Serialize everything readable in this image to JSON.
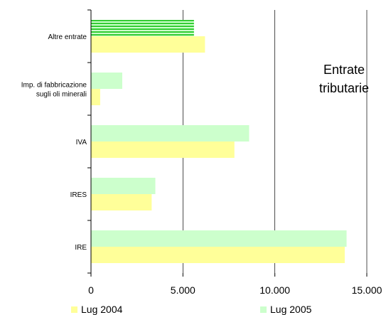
{
  "chart_data": {
    "type": "bar",
    "orientation": "horizontal",
    "categories": [
      "Altre entrate",
      "Imp. di fabbricazione sugli oli minerali",
      "IVA",
      "IRES",
      "IRE"
    ],
    "category_lines": [
      [
        "Altre entrate"
      ],
      [
        "Imp. di fabbricazione",
        "sugli oli minerali"
      ],
      [
        "IVA"
      ],
      [
        "IRES"
      ],
      [
        "IRE"
      ]
    ],
    "series": [
      {
        "name": "Lug 2004",
        "values": [
          6200,
          500,
          7800,
          3300,
          13800
        ],
        "color": "#ffff99"
      },
      {
        "name": "Lug 2005",
        "values": [
          5600,
          1700,
          8600,
          3500,
          13900
        ],
        "color": "#ccffcc",
        "highlight_category": "Altre entrate",
        "highlight_color": "#33cc33"
      }
    ],
    "xlim": [
      0,
      15000
    ],
    "xticks": [
      0,
      5000,
      10000,
      15000
    ],
    "xtick_labels": [
      "0",
      "5.000",
      "10.000",
      "15.000"
    ],
    "gridlines": "vertical",
    "legend_position": "bottom",
    "annotation": [
      "Entrate",
      "tributarie"
    ]
  }
}
